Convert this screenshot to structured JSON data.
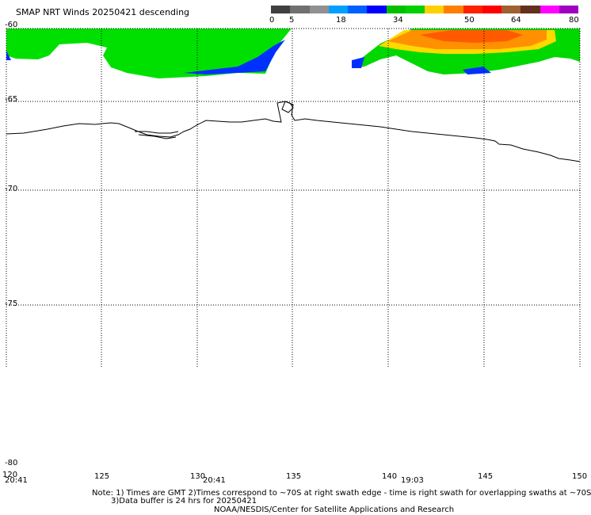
{
  "title": "SMAP NRT Winds  20250421 descending",
  "colorbar": {
    "labels": [
      "0",
      "5",
      "18",
      "34",
      "50",
      "64",
      "80"
    ],
    "colors": [
      "#404040",
      "#707070",
      "#909090",
      "#00a0ff",
      "#0060ff",
      "#0000ff",
      "#00c000",
      "#00d000",
      "#ffd000",
      "#ff8000",
      "#ff2000",
      "#ff0000",
      "#a06030",
      "#603020",
      "#ff00ff",
      "#a000c0"
    ]
  },
  "axes": {
    "lat_labels": [
      "-60",
      "-65",
      "-70",
      "-75",
      "-80"
    ],
    "lon_labels": [
      "120",
      "125",
      "130",
      "135",
      "140",
      "145",
      "150"
    ]
  },
  "swath_times": [
    "20:41",
    "20:41",
    "19:03"
  ],
  "notes": {
    "line1": "Note: 1) Times are GMT 2)Times correspond to ~70S at right swath edge - time is right swath for overlapping swaths at ~70S",
    "line2": "3)Data buffer is 24 hrs for 20250421",
    "line3": "NOAA/NESDIS/Center for Satellite Applications and Research"
  }
}
